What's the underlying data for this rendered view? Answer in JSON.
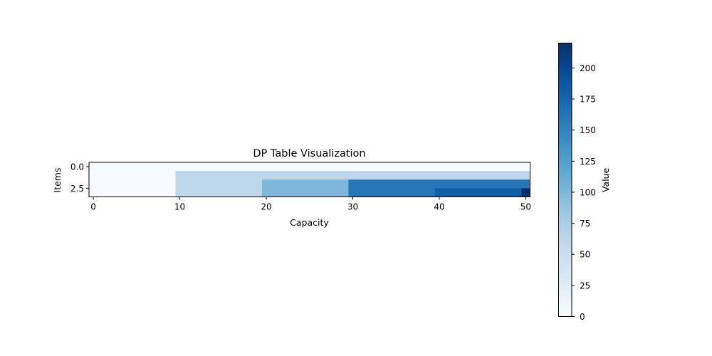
{
  "chart_data": {
    "type": "heatmap",
    "title": "DP Table Visualization",
    "xlabel": "Capacity",
    "ylabel": "Items",
    "colorbar_label": "Value",
    "colormap": "Blues",
    "vmin": 0,
    "vmax": 220,
    "n_rows": 4,
    "n_cols": 51,
    "row_segments": [
      [
        {
          "from": 0,
          "to": 50,
          "value": 0
        }
      ],
      [
        {
          "from": 0,
          "to": 9,
          "value": 0
        },
        {
          "from": 10,
          "to": 50,
          "value": 60
        }
      ],
      [
        {
          "from": 0,
          "to": 9,
          "value": 0
        },
        {
          "from": 10,
          "to": 19,
          "value": 60
        },
        {
          "from": 20,
          "to": 29,
          "value": 100
        },
        {
          "from": 30,
          "to": 50,
          "value": 160
        }
      ],
      [
        {
          "from": 0,
          "to": 9,
          "value": 0
        },
        {
          "from": 10,
          "to": 19,
          "value": 60
        },
        {
          "from": 20,
          "to": 29,
          "value": 100
        },
        {
          "from": 30,
          "to": 39,
          "value": 160
        },
        {
          "from": 40,
          "to": 49,
          "value": 180
        },
        {
          "from": 50,
          "to": 50,
          "value": 220
        }
      ]
    ],
    "x_ticks": [
      {
        "value": 0,
        "label": "0"
      },
      {
        "value": 10,
        "label": "10"
      },
      {
        "value": 20,
        "label": "20"
      },
      {
        "value": 30,
        "label": "30"
      },
      {
        "value": 40,
        "label": "40"
      },
      {
        "value": 50,
        "label": "50"
      }
    ],
    "y_ticks": [
      {
        "value": 0,
        "label": "0.0"
      },
      {
        "value": 2.5,
        "label": "2.5"
      }
    ],
    "colorbar_ticks": [
      {
        "value": 0,
        "label": "0"
      },
      {
        "value": 25,
        "label": "25"
      },
      {
        "value": 50,
        "label": "50"
      },
      {
        "value": 75,
        "label": "75"
      },
      {
        "value": 100,
        "label": "100"
      },
      {
        "value": 125,
        "label": "125"
      },
      {
        "value": 150,
        "label": "150"
      },
      {
        "value": 175,
        "label": "175"
      },
      {
        "value": 200,
        "label": "200"
      }
    ]
  }
}
